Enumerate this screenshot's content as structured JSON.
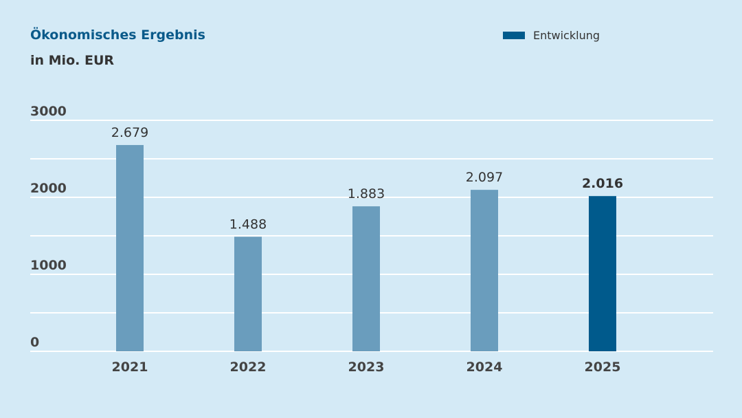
{
  "chart_data": {
    "type": "bar",
    "title": "Ökonomisches Ergebnis",
    "subtitle": "in Mio. EUR",
    "legend": [
      {
        "label": "Entwicklung",
        "color": "#005a8c"
      }
    ],
    "legend_position": "top-right",
    "categories": [
      "2021",
      "2022",
      "2023",
      "2024",
      "2025"
    ],
    "values": [
      2679,
      1488,
      1883,
      2097,
      2016
    ],
    "value_labels": [
      "2.679",
      "1.488",
      "1.883",
      "2.097",
      "2.016"
    ],
    "highlight_index": 4,
    "colors": {
      "default": "#6a9dbd",
      "highlight": "#005a8c",
      "grid": "#ffffff"
    },
    "ylim": [
      0,
      3000
    ],
    "yticks": [
      0,
      1000,
      2000,
      3000
    ],
    "ytick_labels": [
      "0",
      "1000",
      "2000",
      "3000"
    ],
    "gridlines": [
      0,
      500,
      1000,
      1500,
      2000,
      2500,
      3000
    ],
    "xlabel": "",
    "ylabel": ""
  }
}
